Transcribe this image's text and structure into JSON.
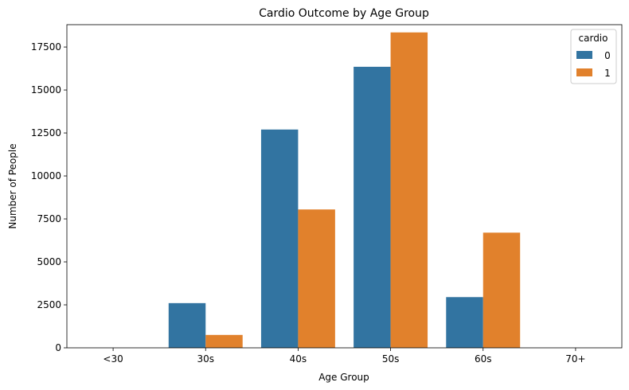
{
  "chart_data": {
    "type": "bar",
    "title": "Cardio Outcome by Age Group",
    "xlabel": "Age Group",
    "ylabel": "Number of People",
    "categories": [
      "<30",
      "30s",
      "40s",
      "50s",
      "60s",
      "70+"
    ],
    "ylim": [
      0,
      18800
    ],
    "yticks": [
      0,
      2500,
      5000,
      7500,
      10000,
      12500,
      15000,
      17500
    ],
    "series": [
      {
        "name": "0",
        "color": "#3274a1",
        "values": [
          0,
          2600,
          12700,
          16350,
          2950,
          0
        ]
      },
      {
        "name": "1",
        "color": "#e1812c",
        "values": [
          0,
          750,
          8050,
          18350,
          6700,
          0
        ]
      }
    ],
    "legend": {
      "title": "cardio",
      "position": "top-right"
    },
    "grid": false
  }
}
